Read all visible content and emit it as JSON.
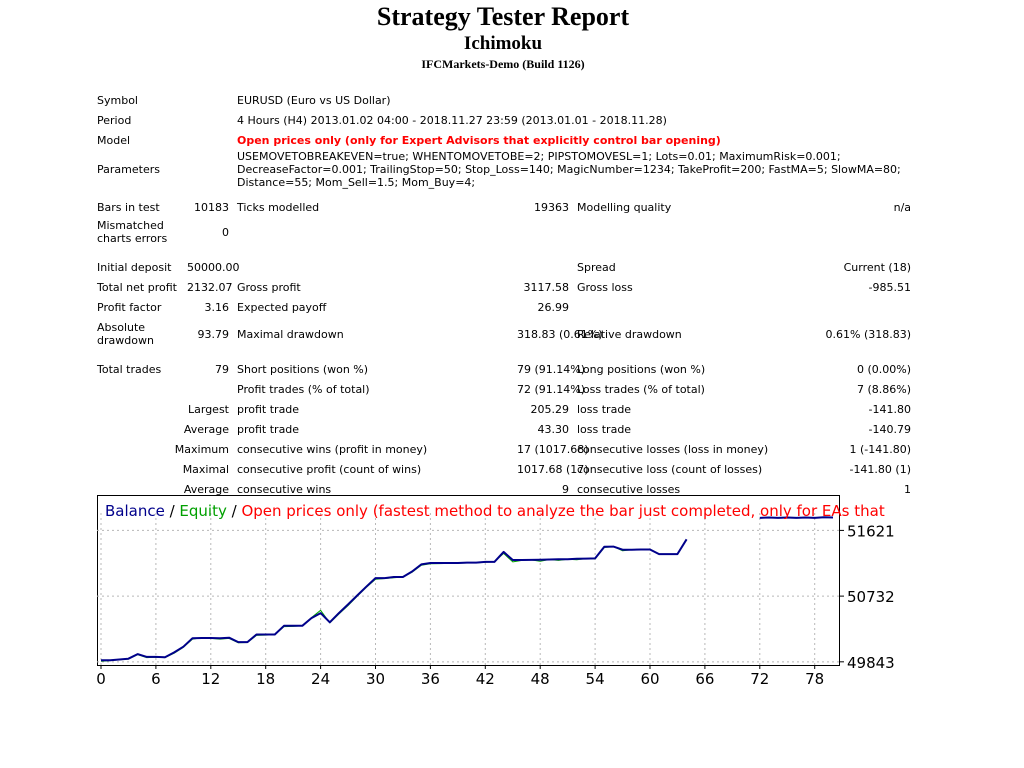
{
  "header": {
    "title": "Strategy Tester Report",
    "subtitle": "Ichimoku",
    "build": "IFCMarkets-Demo (Build 1126)"
  },
  "summary": {
    "symbol_label": "Symbol",
    "symbol_value": "EURUSD (Euro vs US Dollar)",
    "period_label": "Period",
    "period_value": "4 Hours (H4) 2013.01.02 04:00 - 2018.11.27 23:59 (2013.01.01 - 2018.11.28)",
    "model_label": "Model",
    "model_value": "Open prices only (only for Expert Advisors that explicitly control bar opening)",
    "parameters_label": "Parameters",
    "parameters_value": "USEMOVETOBREAKEVEN=true; WHENTOMOVETOBE=2; PIPSTOMOVESL=1; Lots=0.01; MaximumRisk=0.001; DecreaseFactor=0.001; TrailingStop=50; Stop_Loss=140; MagicNumber=1234; TakeProfit=200; FastMA=5; SlowMA=80; Distance=55; Mom_Sell=1.5; Mom_Buy=4;",
    "bars_label": "Bars in test",
    "bars_value": "10183",
    "ticks_label": "Ticks modelled",
    "ticks_value": "19363",
    "quality_label": "Modelling quality",
    "quality_value": "n/a",
    "mismatch_label": "Mismatched charts errors",
    "mismatch_value": "0"
  },
  "results": {
    "initial_deposit_label": "Initial deposit",
    "initial_deposit": "50000.00",
    "spread_label": "Spread",
    "spread": "Current (18)",
    "net_profit_label": "Total net profit",
    "net_profit": "2132.07",
    "gross_profit_label": "Gross profit",
    "gross_profit": "3117.58",
    "gross_loss_label": "Gross loss",
    "gross_loss": "-985.51",
    "profit_factor_label": "Profit factor",
    "profit_factor": "3.16",
    "expected_payoff_label": "Expected payoff",
    "expected_payoff": "26.99",
    "abs_drawdown_label": "Absolute drawdown",
    "abs_drawdown": "93.79",
    "max_drawdown_label": "Maximal drawdown",
    "max_drawdown": "318.83 (0.61%)",
    "rel_drawdown_label": "Relative drawdown",
    "rel_drawdown": "0.61% (318.83)",
    "total_trades_label": "Total trades",
    "total_trades": "79",
    "short_label": "Short positions (won %)",
    "short": "79 (91.14%)",
    "long_label": "Long positions (won %)",
    "long": "0 (0.00%)",
    "profit_trades_label": "Profit trades (% of total)",
    "profit_trades": "72 (91.14%)",
    "loss_trades_label": "Loss trades (% of total)",
    "loss_trades": "7 (8.86%)",
    "largest_label": "Largest",
    "largest_profit_label": "profit trade",
    "largest_profit": "205.29",
    "largest_loss_label": "loss trade",
    "largest_loss": "-141.80",
    "average_label": "Average",
    "avg_profit_label": "profit trade",
    "avg_profit": "43.30",
    "avg_loss_label": "loss trade",
    "avg_loss": "-140.79",
    "maximum_label": "Maximum",
    "max_cons_wins_label": "consecutive wins (profit in money)",
    "max_cons_wins": "17 (1017.68)",
    "max_cons_losses_label": "consecutive losses (loss in money)",
    "max_cons_losses": "1 (-141.80)",
    "maximal_label": "Maximal",
    "maximal_cons_profit_label": "consecutive profit (count of wins)",
    "maximal_cons_profit": "1017.68 (17)",
    "maximal_cons_loss_label": "consecutive loss (count of losses)",
    "maximal_cons_loss": "-141.80 (1)",
    "average2_label": "Average",
    "avg_cons_wins_label": "consecutive wins",
    "avg_cons_wins": "9",
    "avg_cons_losses_label": "consecutive losses",
    "avg_cons_losses": "1"
  },
  "chart_data": {
    "type": "line",
    "legend": {
      "balance": "Balance",
      "sep1": " / ",
      "equity": "Equity",
      "sep2": " / ",
      "note": "Open prices only (fastest method to analyze the bar just completed, only for EAs that"
    },
    "xlim": [
      0,
      80
    ],
    "ylim": [
      49800,
      52100
    ],
    "x_ticks": [
      0,
      6,
      12,
      18,
      24,
      30,
      36,
      42,
      48,
      54,
      60,
      66,
      72,
      78
    ],
    "y_ticks": [
      49843,
      50732,
      51621
    ],
    "grid": true,
    "colors": {
      "balance": "#00008b",
      "equity": "#00a000",
      "note": "#ff0000"
    },
    "series": [
      {
        "name": "Balance",
        "x": [
          0,
          1,
          2,
          3,
          4,
          5,
          6,
          7,
          8,
          9,
          10,
          11,
          12,
          13,
          14,
          15,
          16,
          17,
          18,
          19,
          20,
          21,
          22,
          23,
          24,
          25,
          26,
          27,
          28,
          29,
          30,
          31,
          32,
          33,
          34,
          35,
          36,
          37,
          38,
          39,
          40,
          41,
          42,
          43,
          44,
          45,
          46,
          47,
          48,
          49,
          50,
          51,
          52,
          53,
          54,
          55,
          56,
          57,
          58,
          59,
          60,
          61,
          62,
          63,
          64
        ],
        "y": [
          49865,
          49865,
          49875,
          49885,
          49948,
          49910,
          49910,
          49905,
          49970,
          50048,
          50162,
          50165,
          50165,
          50162,
          50170,
          50110,
          50110,
          50212,
          50212,
          50212,
          50330,
          50330,
          50330,
          50435,
          50502,
          50378,
          50502,
          50620,
          50740,
          50860,
          50976,
          50976,
          50990,
          50990,
          51065,
          51161,
          51180,
          51180,
          51180,
          51180,
          51185,
          51185,
          51195,
          51195,
          51330,
          51220,
          51220,
          51222,
          51225,
          51228,
          51230,
          51232,
          51238,
          51240,
          51242,
          51400,
          51402,
          51360,
          51360,
          51362,
          51362,
          51300,
          51300,
          51300,
          51500
        ]
      },
      {
        "name": "Equity",
        "x": [
          0,
          1,
          2,
          3,
          4,
          5,
          6,
          7,
          8,
          9,
          10,
          11,
          12,
          13,
          14,
          15,
          16,
          17,
          18,
          19,
          20,
          21,
          22,
          23,
          24,
          25,
          26,
          27,
          28,
          29,
          30,
          31,
          32,
          33,
          34,
          35,
          36,
          37,
          38,
          39,
          40,
          41,
          42,
          43,
          44,
          45,
          46,
          47,
          48,
          49,
          50,
          51,
          52,
          53,
          54,
          55,
          56,
          57,
          58,
          59,
          60,
          61,
          62,
          63,
          64
        ],
        "y": [
          49850,
          49860,
          49870,
          49880,
          49940,
          49900,
          49905,
          49900,
          49960,
          50040,
          50150,
          50170,
          50160,
          50150,
          50160,
          50100,
          50105,
          50200,
          50205,
          50210,
          50320,
          50322,
          50330,
          50440,
          50540,
          50370,
          50490,
          50605,
          50730,
          50850,
          50960,
          50970,
          50980,
          50990,
          51055,
          51150,
          51170,
          51172,
          51175,
          51178,
          51180,
          51182,
          51190,
          51195,
          51310,
          51195,
          51215,
          51222,
          51205,
          51228,
          51215,
          51232,
          51225,
          51240,
          51235,
          51390,
          51402,
          51345,
          51360,
          51358,
          51362,
          51300,
          51302,
          51298,
          51495
        ]
      },
      {
        "name": "Balance",
        "x": [
          72,
          73,
          74,
          75,
          76,
          77,
          78,
          79,
          80
        ],
        "y": [
          51790,
          51795,
          51790,
          51795,
          51790,
          51795,
          51790,
          51800,
          51795
        ]
      }
    ]
  }
}
